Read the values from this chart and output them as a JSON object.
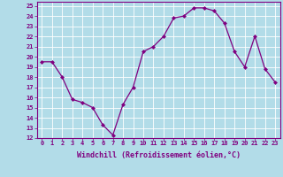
{
  "x": [
    0,
    1,
    2,
    3,
    4,
    5,
    6,
    7,
    8,
    9,
    10,
    11,
    12,
    13,
    14,
    15,
    16,
    17,
    18,
    19,
    20,
    21,
    22,
    23
  ],
  "y": [
    19.5,
    19.5,
    18.0,
    15.8,
    15.5,
    15.0,
    13.3,
    12.3,
    15.3,
    17.0,
    20.5,
    21.0,
    22.0,
    23.8,
    24.0,
    24.8,
    24.8,
    24.5,
    23.3,
    20.5,
    19.0,
    22.0,
    18.8,
    17.5
  ],
  "line_color": "#800080",
  "marker": "D",
  "markersize": 2.0,
  "linewidth": 0.9,
  "bg_color": "#b2dce8",
  "grid_color": "#ffffff",
  "xlabel": "Windchill (Refroidissement éolien,°C)",
  "xlabel_color": "#800080",
  "ylabel_ticks": [
    12,
    13,
    14,
    15,
    16,
    17,
    18,
    19,
    20,
    21,
    22,
    23,
    24,
    25
  ],
  "ylim": [
    12,
    25.4
  ],
  "xlim": [
    -0.5,
    23.5
  ],
  "xticks": [
    0,
    1,
    2,
    3,
    4,
    5,
    6,
    7,
    8,
    9,
    10,
    11,
    12,
    13,
    14,
    15,
    16,
    17,
    18,
    19,
    20,
    21,
    22,
    23
  ],
  "tick_color": "#800080",
  "tick_fontsize": 5.0,
  "xlabel_fontsize": 6.0,
  "xlabel_fontweight": "bold"
}
